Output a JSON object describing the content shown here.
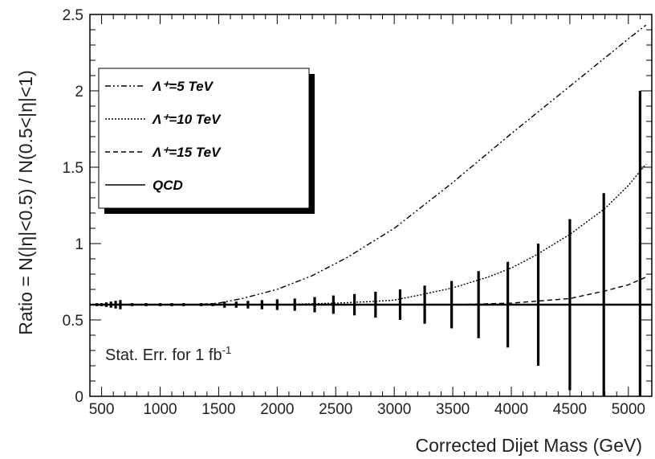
{
  "chart_data": {
    "type": "line",
    "xlabel": "Corrected Dijet Mass (GeV)",
    "ylabel": "Ratio = N(|η|<0.5) / N(0.5<|η|<1)",
    "xlim": [
      400,
      5200
    ],
    "ylim": [
      0,
      2.5
    ],
    "x_ticks": [
      "500",
      "1000",
      "1500",
      "2000",
      "2500",
      "3000",
      "3500",
      "4000",
      "4500",
      "5000"
    ],
    "y_ticks": [
      "0",
      "0.5",
      "1",
      "1.5",
      "2",
      "2.5"
    ],
    "grid": false,
    "legend_position": "top-left",
    "annotation": {
      "main": "Stat. Err. for 1 fb",
      "sup": "-1"
    },
    "series": [
      {
        "name": "Λ⁺=5 TeV",
        "legend_label": "Λ⁺=5 TeV",
        "style": "dash-dot-dot",
        "x": [
          400,
          1000,
          1300,
          1500,
          1700,
          2000,
          2300,
          2600,
          3000,
          3500,
          4000,
          4500,
          5000,
          5150
        ],
        "y": [
          0.6,
          0.6,
          0.6,
          0.61,
          0.64,
          0.7,
          0.79,
          0.91,
          1.1,
          1.4,
          1.72,
          2.03,
          2.34,
          2.43
        ]
      },
      {
        "name": "Λ⁺=10 TeV",
        "legend_label": "Λ⁺=10 TeV",
        "style": "dotted",
        "x": [
          400,
          2000,
          2500,
          2800,
          3000,
          3200,
          3500,
          3800,
          4000,
          4200,
          4500,
          4800,
          5000,
          5150
        ],
        "y": [
          0.6,
          0.6,
          0.61,
          0.62,
          0.63,
          0.66,
          0.71,
          0.78,
          0.84,
          0.92,
          1.06,
          1.23,
          1.38,
          1.52
        ]
      },
      {
        "name": "Λ⁺=15 TeV",
        "legend_label": "Λ⁺=15 TeV",
        "style": "dashed",
        "x": [
          400,
          3000,
          3500,
          4000,
          4500,
          4800,
          5000,
          5150
        ],
        "y": [
          0.6,
          0.6,
          0.6,
          0.61,
          0.64,
          0.69,
          0.73,
          0.78
        ]
      },
      {
        "name": "QCD",
        "legend_label": "QCD",
        "style": "solid",
        "x": [
          400,
          5200
        ],
        "y": [
          0.6,
          0.6
        ]
      }
    ],
    "error_bars": {
      "center": 0.6,
      "x": [
        460,
        500,
        540,
        580,
        620,
        660,
        760,
        880,
        1000,
        1100,
        1200,
        1350,
        1450,
        1550,
        1650,
        1750,
        1870,
        2000,
        2150,
        2320,
        2480,
        2660,
        2840,
        3050,
        3260,
        3490,
        3720,
        3970,
        4230,
        4500,
        4790,
        5100
      ],
      "half_width": [
        0.01,
        0.01,
        0.015,
        0.02,
        0.025,
        0.03,
        0.01,
        0.01,
        0.01,
        0.01,
        0.01,
        0.01,
        0.01,
        0.02,
        0.02,
        0.025,
        0.03,
        0.035,
        0.04,
        0.05,
        0.06,
        0.07,
        0.085,
        0.1,
        0.125,
        0.155,
        0.22,
        0.28,
        0.4,
        0.56,
        0.73,
        1.4
      ]
    }
  }
}
